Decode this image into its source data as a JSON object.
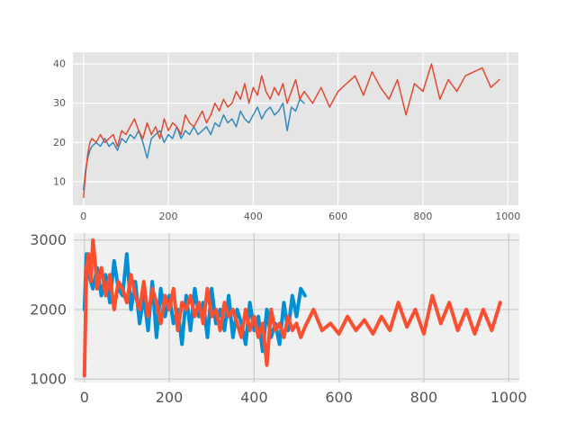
{
  "chart_data": [
    {
      "type": "line",
      "style": "ggplot",
      "background": "#e5e5e5",
      "grid": true,
      "xlim": [
        -25,
        1025
      ],
      "ylim": [
        4,
        43
      ],
      "xticks": [
        0,
        200,
        400,
        600,
        800,
        1000
      ],
      "yticks": [
        10,
        20,
        30,
        40
      ],
      "series": [
        {
          "color": "#348abd",
          "linewidth": 1.5,
          "x": [
            0,
            5,
            10,
            15,
            20,
            30,
            40,
            50,
            60,
            70,
            80,
            90,
            100,
            110,
            120,
            130,
            140,
            150,
            160,
            170,
            180,
            190,
            200,
            210,
            220,
            230,
            240,
            250,
            260,
            270,
            280,
            290,
            300,
            310,
            320,
            330,
            340,
            350,
            360,
            370,
            380,
            390,
            400,
            410,
            420,
            430,
            440,
            450,
            460,
            470,
            480,
            490,
            500,
            510,
            520
          ],
          "y": [
            8,
            13,
            16,
            18,
            19,
            20,
            19,
            21,
            19,
            20,
            18,
            21,
            20,
            22,
            21,
            23,
            20,
            16,
            21,
            22,
            23,
            20,
            22,
            21,
            24,
            21,
            23,
            22,
            24,
            22,
            23,
            24,
            22,
            25,
            24,
            27,
            25,
            26,
            24,
            28,
            26,
            25,
            27,
            29,
            26,
            28,
            29,
            27,
            28,
            30,
            23,
            29,
            28,
            31,
            30
          ]
        },
        {
          "color": "#e24a33",
          "linewidth": 1.5,
          "x": [
            0,
            5,
            10,
            15,
            20,
            30,
            40,
            50,
            60,
            70,
            80,
            90,
            100,
            110,
            120,
            130,
            140,
            150,
            160,
            170,
            180,
            190,
            200,
            210,
            220,
            230,
            240,
            250,
            260,
            270,
            280,
            290,
            300,
            310,
            320,
            330,
            340,
            350,
            360,
            370,
            380,
            390,
            400,
            410,
            420,
            430,
            440,
            450,
            460,
            470,
            480,
            490,
            500,
            510,
            520,
            540,
            560,
            580,
            600,
            620,
            640,
            660,
            680,
            700,
            720,
            740,
            760,
            780,
            800,
            820,
            840,
            860,
            880,
            900,
            920,
            940,
            960,
            980
          ],
          "y": [
            6,
            12,
            17,
            20,
            21,
            20,
            22,
            20,
            21,
            22,
            19,
            23,
            22,
            24,
            26,
            23,
            21,
            25,
            22,
            24,
            21,
            26,
            23,
            25,
            24,
            22,
            27,
            25,
            24,
            26,
            28,
            25,
            27,
            30,
            28,
            31,
            29,
            30,
            33,
            31,
            35,
            30,
            34,
            32,
            37,
            33,
            31,
            34,
            32,
            35,
            30,
            33,
            36,
            31,
            33,
            30,
            34,
            29,
            33,
            35,
            37,
            32,
            38,
            34,
            31,
            36,
            27,
            35,
            33,
            40,
            31,
            36,
            33,
            37,
            38,
            39,
            34,
            36
          ]
        }
      ]
    },
    {
      "type": "line",
      "style": "fivethirtyeight",
      "background": "#f0f0f0",
      "grid": true,
      "xlim": [
        -25,
        1025
      ],
      "ylim": [
        950,
        3100
      ],
      "xticks": [
        0,
        200,
        400,
        600,
        800,
        1000
      ],
      "yticks": [
        1000,
        2000,
        3000
      ],
      "series": [
        {
          "color": "#008fd5",
          "linewidth": 4,
          "x": [
            0,
            5,
            10,
            20,
            30,
            40,
            50,
            60,
            70,
            80,
            90,
            100,
            110,
            120,
            130,
            140,
            150,
            160,
            170,
            180,
            190,
            200,
            210,
            220,
            230,
            240,
            250,
            260,
            270,
            280,
            290,
            300,
            310,
            320,
            330,
            340,
            350,
            360,
            370,
            380,
            390,
            400,
            410,
            420,
            430,
            440,
            450,
            460,
            470,
            480,
            490,
            500,
            510,
            520
          ],
          "y": [
            2000,
            2800,
            2500,
            2300,
            2600,
            2200,
            2500,
            2100,
            2700,
            2300,
            2200,
            2800,
            2000,
            2400,
            1800,
            2200,
            1700,
            2400,
            1600,
            2300,
            1900,
            2200,
            1800,
            2000,
            1500,
            2200,
            1700,
            2300,
            1900,
            2100,
            1600,
            2300,
            1800,
            2000,
            1700,
            2200,
            1600,
            2000,
            1800,
            1500,
            2100,
            1700,
            1900,
            1400,
            2000,
            1600,
            1800,
            1500,
            2100,
            1700,
            2200,
            1900,
            2300,
            2200
          ]
        },
        {
          "color": "#fc4f30",
          "linewidth": 4,
          "x": [
            0,
            5,
            10,
            15,
            20,
            25,
            30,
            40,
            50,
            60,
            70,
            80,
            90,
            100,
            110,
            120,
            130,
            140,
            150,
            160,
            170,
            180,
            190,
            200,
            210,
            220,
            230,
            240,
            250,
            260,
            270,
            280,
            290,
            300,
            310,
            320,
            330,
            340,
            350,
            360,
            370,
            380,
            390,
            400,
            410,
            420,
            430,
            440,
            450,
            460,
            470,
            480,
            490,
            500,
            510,
            520,
            540,
            560,
            580,
            600,
            620,
            640,
            660,
            680,
            700,
            720,
            740,
            760,
            780,
            800,
            820,
            840,
            860,
            880,
            900,
            920,
            940,
            960,
            980
          ],
          "y": [
            1050,
            2600,
            2800,
            2400,
            3000,
            2700,
            2300,
            2600,
            2200,
            2500,
            2000,
            2400,
            2300,
            2100,
            2500,
            2200,
            2000,
            2400,
            1900,
            2300,
            2100,
            1800,
            2200,
            2000,
            2300,
            1700,
            2100,
            2000,
            2200,
            1900,
            2100,
            1800,
            2300,
            1900,
            2000,
            1700,
            2100,
            1900,
            2000,
            1800,
            1600,
            2000,
            1700,
            1900,
            1600,
            1800,
            1200,
            2000,
            1700,
            1800,
            1600,
            1900,
            1700,
            1800,
            1600,
            1750,
            2000,
            1700,
            1800,
            1650,
            1900,
            1700,
            1850,
            1650,
            1900,
            1700,
            2100,
            1750,
            2000,
            1650,
            2200,
            1800,
            2100,
            1700,
            2000,
            1650,
            2000,
            1700,
            2100
          ]
        }
      ]
    }
  ]
}
